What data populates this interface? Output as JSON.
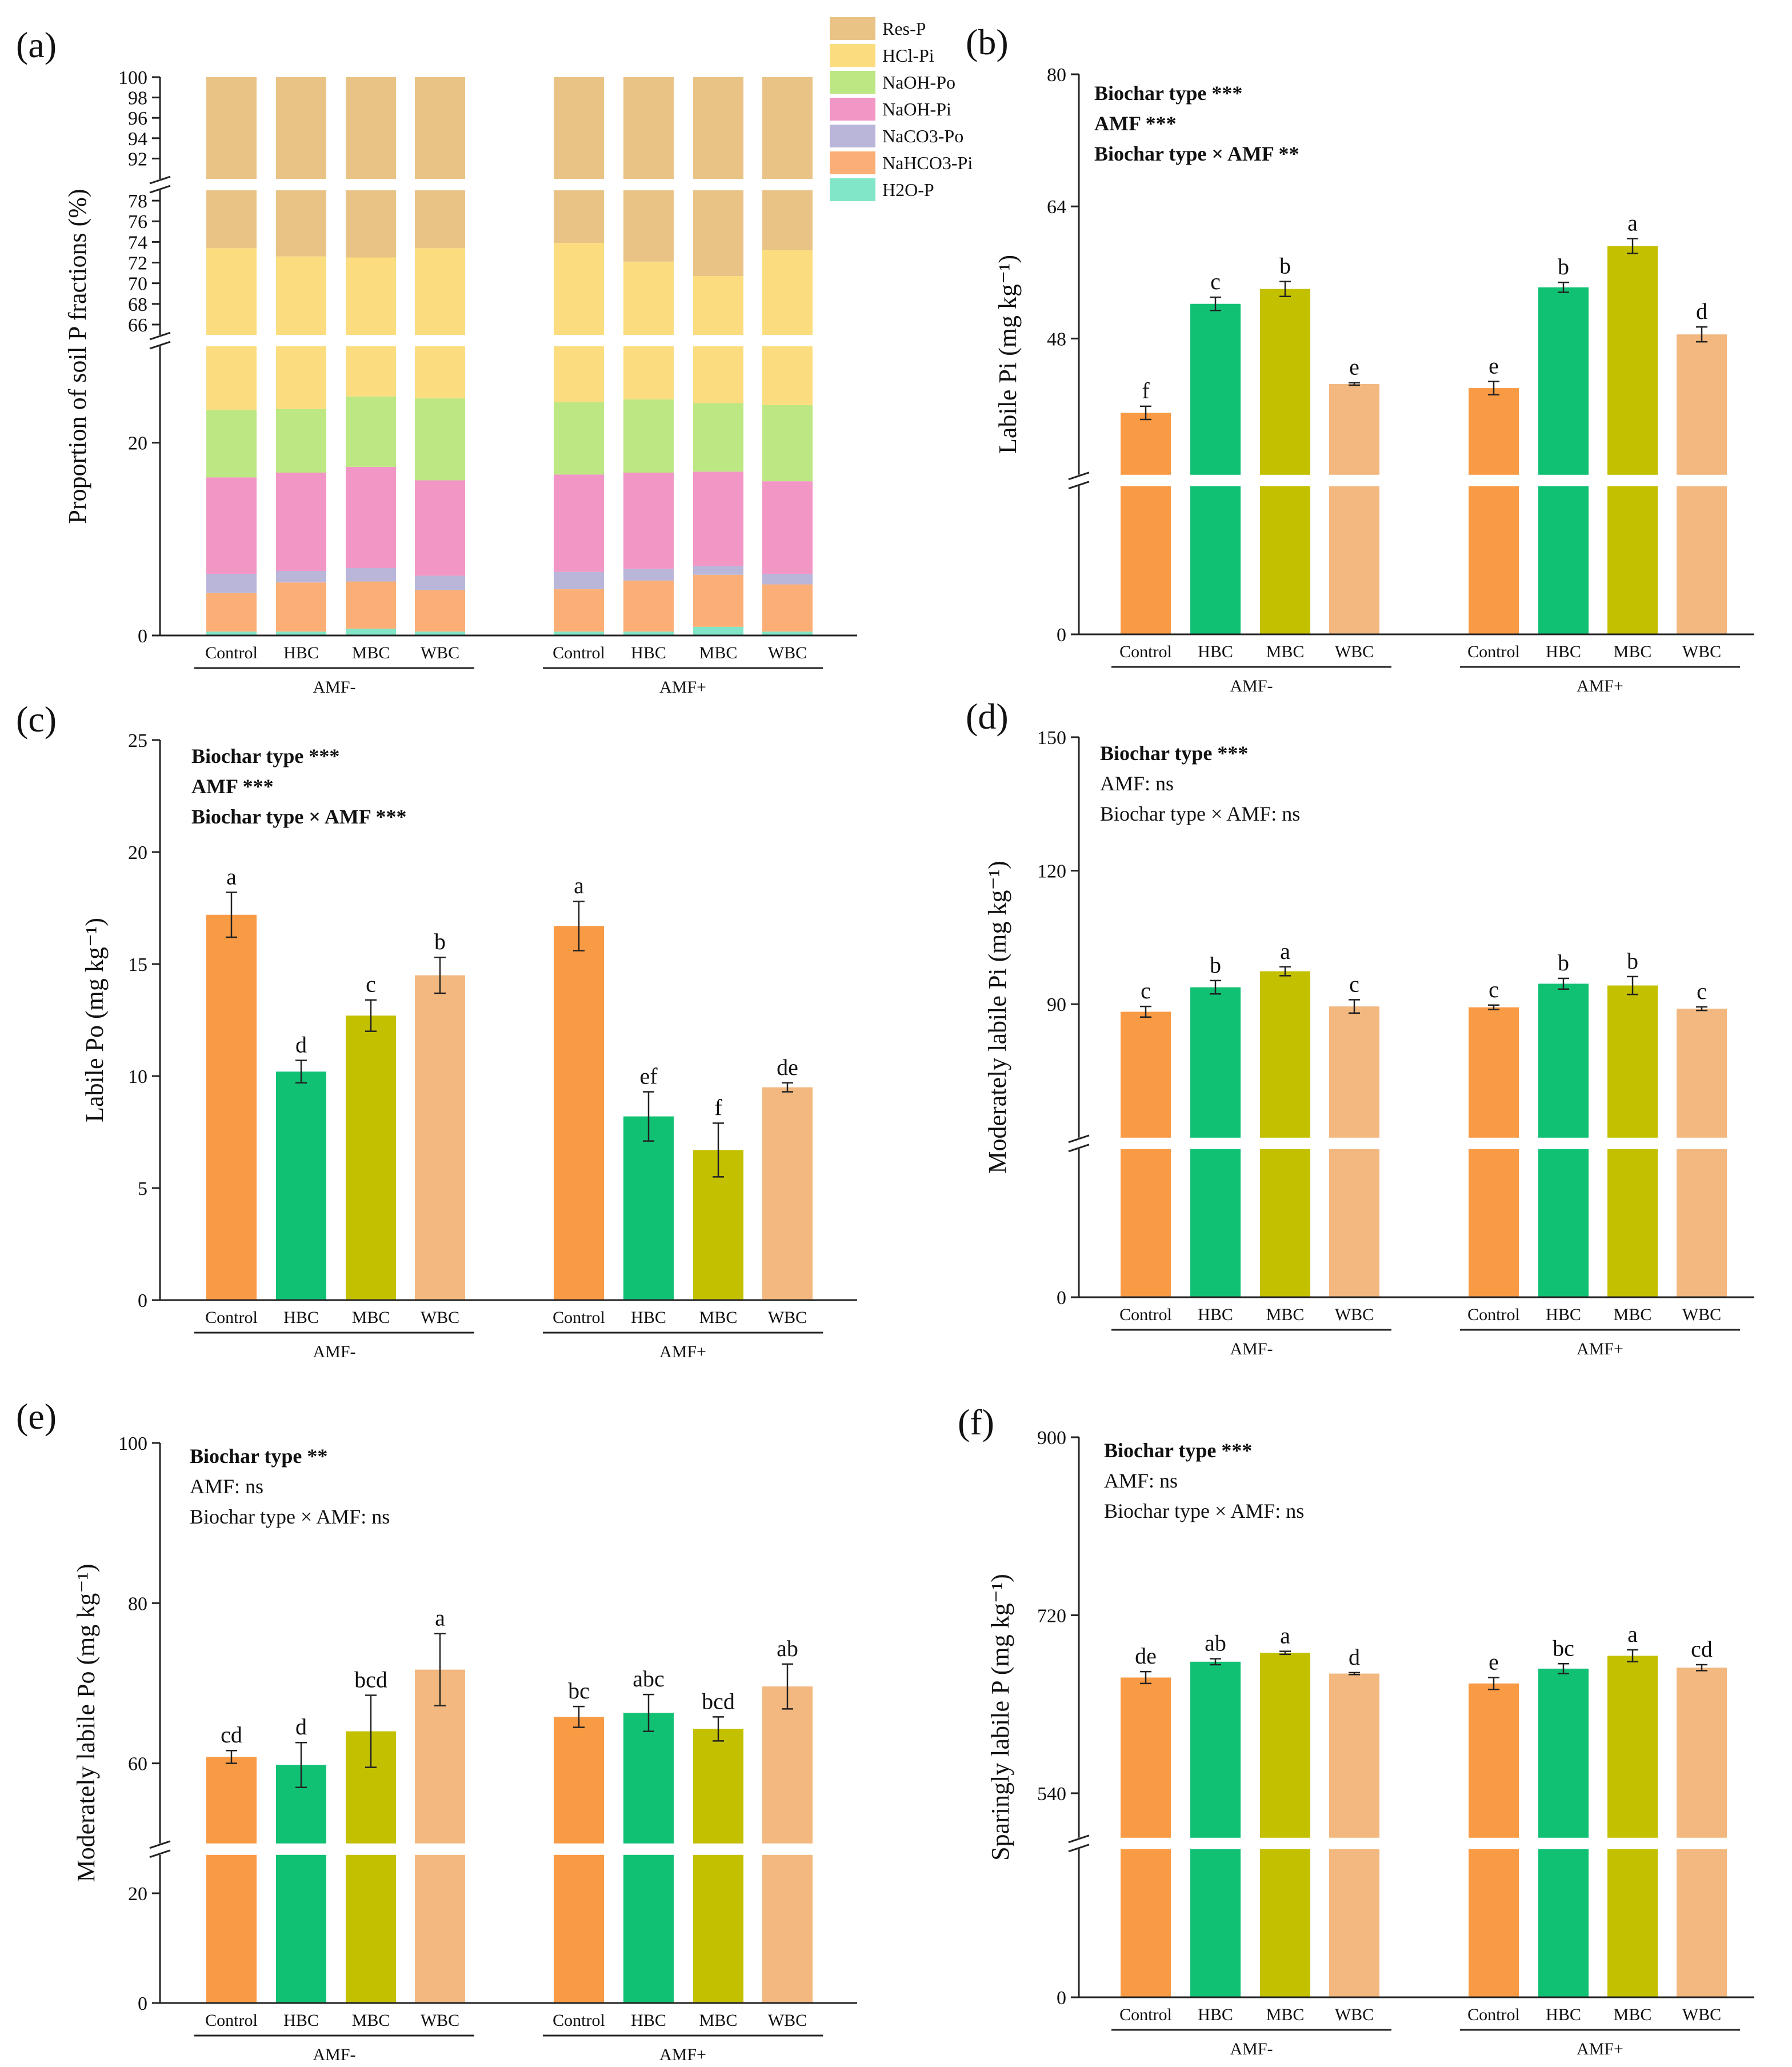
{
  "figure": {
    "colors": {
      "Control": "#F99A45",
      "HBC": "#10C174",
      "MBC": "#C3C000",
      "WBC": "#F2B880"
    },
    "fraction_colors": {
      "Res-P": "#E8C385",
      "HCl-Pi": "#FBDD80",
      "NaOH-Po": "#BCE782",
      "NaOH-Pi": "#F296C6",
      "NaCO3-Po": "#B9B6DA",
      "NaHCO3-Pi": "#FBAF76",
      "H2O-P": "#81E6C7"
    }
  },
  "chart_data": [
    {
      "panel": "(a)",
      "type": "stacked-bar",
      "ylabel": "Proportion of soil P fractions (%)",
      "groups": [
        "AMF-",
        "AMF+"
      ],
      "categories": [
        "Control",
        "HBC",
        "MBC",
        "WBC"
      ],
      "y_segments": [
        {
          "range": [
            0,
            30
          ],
          "ticks": [
            0,
            20
          ]
        },
        {
          "range": [
            65,
            79
          ],
          "ticks": [
            66,
            68,
            70,
            72,
            74,
            76,
            78
          ]
        },
        {
          "range": [
            90,
            100
          ],
          "ticks": [
            92,
            94,
            96,
            98,
            100
          ]
        }
      ],
      "legend": [
        "Res-P",
        "HCl-Pi",
        "NaOH-Po",
        "NaOH-Pi",
        "NaCO3-Po",
        "NaHCO3-Pi",
        "H2O-P"
      ],
      "bars": [
        {
          "group": "AMF-",
          "category": "Control",
          "fractions": {
            "H2O-P": 0.4,
            "NaHCO3-Pi": 4.0,
            "NaCO3-Po": 2.0,
            "NaOH-Pi": 10.0,
            "NaOH-Po": 7.0,
            "HCl-Pi": 50.0,
            "Res-P": 26.6
          }
        },
        {
          "group": "AMF-",
          "category": "HBC",
          "fractions": {
            "H2O-P": 0.4,
            "NaHCO3-Pi": 5.1,
            "NaCO3-Po": 1.2,
            "NaOH-Pi": 10.2,
            "NaOH-Po": 6.6,
            "HCl-Pi": 49.1,
            "Res-P": 27.4
          }
        },
        {
          "group": "AMF-",
          "category": "MBC",
          "fractions": {
            "H2O-P": 0.7,
            "NaHCO3-Pi": 4.9,
            "NaCO3-Po": 1.4,
            "NaOH-Pi": 10.5,
            "NaOH-Po": 7.3,
            "HCl-Pi": 47.7,
            "Res-P": 27.5
          }
        },
        {
          "group": "AMF-",
          "category": "WBC",
          "fractions": {
            "H2O-P": 0.4,
            "NaHCO3-Pi": 4.3,
            "NaCO3-Po": 1.5,
            "NaOH-Pi": 9.9,
            "NaOH-Po": 8.5,
            "HCl-Pi": 48.8,
            "Res-P": 26.6
          }
        },
        {
          "group": "AMF+",
          "category": "Control",
          "fractions": {
            "H2O-P": 0.4,
            "NaHCO3-Pi": 4.4,
            "NaCO3-Po": 1.8,
            "NaOH-Pi": 10.1,
            "NaOH-Po": 7.5,
            "HCl-Pi": 49.7,
            "Res-P": 26.1
          }
        },
        {
          "group": "AMF+",
          "category": "HBC",
          "fractions": {
            "H2O-P": 0.4,
            "NaHCO3-Pi": 5.3,
            "NaCO3-Po": 1.2,
            "NaOH-Pi": 10.0,
            "NaOH-Po": 7.6,
            "HCl-Pi": 47.6,
            "Res-P": 27.9
          }
        },
        {
          "group": "AMF+",
          "category": "MBC",
          "fractions": {
            "H2O-P": 0.9,
            "NaHCO3-Pi": 5.4,
            "NaCO3-Po": 0.9,
            "NaOH-Pi": 9.8,
            "NaOH-Po": 7.1,
            "HCl-Pi": 46.6,
            "Res-P": 29.3
          }
        },
        {
          "group": "AMF+",
          "category": "WBC",
          "fractions": {
            "H2O-P": 0.4,
            "NaHCO3-Pi": 4.9,
            "NaCO3-Po": 1.1,
            "NaOH-Pi": 9.6,
            "NaOH-Po": 7.9,
            "HCl-Pi": 49.3,
            "Res-P": 26.8
          }
        }
      ]
    },
    {
      "panel": "(b)",
      "type": "bar",
      "ylabel": "Labile Pi (mg kg⁻¹)",
      "groups": [
        "AMF-",
        "AMF+"
      ],
      "categories": [
        "Control",
        "HBC",
        "MBC",
        "WBC"
      ],
      "y_segments": [
        {
          "range": [
            0,
            16
          ],
          "ticks": [
            0
          ]
        },
        {
          "range": [
            31.5,
            80
          ],
          "ticks": [
            48,
            64,
            80
          ]
        }
      ],
      "stats": [
        "Biochar type ***",
        "AMF ***",
        "Biochar type × AMF **"
      ],
      "stats_bold": [
        true,
        true,
        true
      ],
      "bars": [
        {
          "group": "AMF-",
          "category": "Control",
          "value": 39.0,
          "error": 0.8,
          "letter": "f"
        },
        {
          "group": "AMF-",
          "category": "HBC",
          "value": 52.2,
          "error": 0.8,
          "letter": "c"
        },
        {
          "group": "AMF-",
          "category": "MBC",
          "value": 54.0,
          "error": 0.9,
          "letter": "b"
        },
        {
          "group": "AMF-",
          "category": "WBC",
          "value": 42.5,
          "error": 0.15,
          "letter": "e"
        },
        {
          "group": "AMF+",
          "category": "Control",
          "value": 42.0,
          "error": 0.8,
          "letter": "e"
        },
        {
          "group": "AMF+",
          "category": "HBC",
          "value": 54.2,
          "error": 0.6,
          "letter": "b"
        },
        {
          "group": "AMF+",
          "category": "MBC",
          "value": 59.2,
          "error": 0.9,
          "letter": "a"
        },
        {
          "group": "AMF+",
          "category": "WBC",
          "value": 48.5,
          "error": 0.9,
          "letter": "d"
        }
      ]
    },
    {
      "panel": "(c)",
      "type": "bar",
      "ylabel": "Labile Po (mg kg⁻¹)",
      "groups": [
        "AMF-",
        "AMF+"
      ],
      "categories": [
        "Control",
        "HBC",
        "MBC",
        "WBC"
      ],
      "y_segments": [
        {
          "range": [
            0,
            25
          ],
          "ticks": [
            0,
            5,
            10,
            15,
            20,
            25
          ]
        }
      ],
      "stats": [
        "Biochar type ***",
        "AMF ***",
        "Biochar type × AMF ***"
      ],
      "stats_bold": [
        true,
        true,
        true
      ],
      "bars": [
        {
          "group": "AMF-",
          "category": "Control",
          "value": 17.2,
          "error": 1.0,
          "letter": "a"
        },
        {
          "group": "AMF-",
          "category": "HBC",
          "value": 10.2,
          "error": 0.5,
          "letter": "d"
        },
        {
          "group": "AMF-",
          "category": "MBC",
          "value": 12.7,
          "error": 0.7,
          "letter": "c"
        },
        {
          "group": "AMF-",
          "category": "WBC",
          "value": 14.5,
          "error": 0.8,
          "letter": "b"
        },
        {
          "group": "AMF+",
          "category": "Control",
          "value": 16.7,
          "error": 1.1,
          "letter": "a"
        },
        {
          "group": "AMF+",
          "category": "HBC",
          "value": 8.2,
          "error": 1.1,
          "letter": "ef"
        },
        {
          "group": "AMF+",
          "category": "MBC",
          "value": 6.7,
          "error": 1.2,
          "letter": "f"
        },
        {
          "group": "AMF+",
          "category": "WBC",
          "value": 9.5,
          "error": 0.2,
          "letter": "de"
        }
      ]
    },
    {
      "panel": "(d)",
      "type": "bar",
      "ylabel": "Moderately labile Pi (mg kg⁻¹)",
      "groups": [
        "AMF-",
        "AMF+"
      ],
      "categories": [
        "Control",
        "HBC",
        "MBC",
        "WBC"
      ],
      "y_segments": [
        {
          "range": [
            0,
            30
          ],
          "ticks": [
            0
          ]
        },
        {
          "range": [
            60,
            150
          ],
          "ticks": [
            90,
            120,
            150
          ]
        }
      ],
      "stats": [
        "Biochar type ***",
        "AMF: ns",
        "Biochar type × AMF: ns"
      ],
      "stats_bold": [
        true,
        false,
        false
      ],
      "bars": [
        {
          "group": "AMF-",
          "category": "Control",
          "value": 88.3,
          "error": 1.2,
          "letter": "c"
        },
        {
          "group": "AMF-",
          "category": "HBC",
          "value": 93.8,
          "error": 1.5,
          "letter": "b"
        },
        {
          "group": "AMF-",
          "category": "MBC",
          "value": 97.4,
          "error": 1.0,
          "letter": "a"
        },
        {
          "group": "AMF-",
          "category": "WBC",
          "value": 89.5,
          "error": 1.5,
          "letter": "c"
        },
        {
          "group": "AMF+",
          "category": "Control",
          "value": 89.3,
          "error": 0.5,
          "letter": "c"
        },
        {
          "group": "AMF+",
          "category": "HBC",
          "value": 94.6,
          "error": 1.2,
          "letter": "b"
        },
        {
          "group": "AMF+",
          "category": "MBC",
          "value": 94.2,
          "error": 2.0,
          "letter": "b"
        },
        {
          "group": "AMF+",
          "category": "WBC",
          "value": 89.0,
          "error": 0.4,
          "letter": "c"
        }
      ]
    },
    {
      "panel": "(e)",
      "type": "bar",
      "ylabel": "Moderately labile Po (mg kg⁻¹)",
      "groups": [
        "AMF-",
        "AMF+"
      ],
      "categories": [
        "Control",
        "HBC",
        "MBC",
        "WBC"
      ],
      "y_segments": [
        {
          "range": [
            0,
            27
          ],
          "ticks": [
            0,
            20
          ]
        },
        {
          "range": [
            50,
            100
          ],
          "ticks": [
            60,
            80,
            100
          ]
        }
      ],
      "stats": [
        "Biochar type **",
        "AMF: ns",
        "Biochar type × AMF: ns"
      ],
      "stats_bold": [
        true,
        false,
        false
      ],
      "bars": [
        {
          "group": "AMF-",
          "category": "Control",
          "value": 60.8,
          "error": 0.8,
          "letter": "cd"
        },
        {
          "group": "AMF-",
          "category": "HBC",
          "value": 59.8,
          "error": 2.8,
          "letter": "d"
        },
        {
          "group": "AMF-",
          "category": "MBC",
          "value": 64.0,
          "error": 4.5,
          "letter": "bcd"
        },
        {
          "group": "AMF-",
          "category": "WBC",
          "value": 71.7,
          "error": 4.5,
          "letter": "a"
        },
        {
          "group": "AMF+",
          "category": "Control",
          "value": 65.8,
          "error": 1.3,
          "letter": "bc"
        },
        {
          "group": "AMF+",
          "category": "HBC",
          "value": 66.3,
          "error": 2.3,
          "letter": "abc"
        },
        {
          "group": "AMF+",
          "category": "MBC",
          "value": 64.3,
          "error": 1.5,
          "letter": "bcd"
        },
        {
          "group": "AMF+",
          "category": "WBC",
          "value": 69.6,
          "error": 2.8,
          "letter": "ab"
        }
      ]
    },
    {
      "panel": "(f)",
      "type": "bar",
      "ylabel": "Sparingly labile P (mg kg⁻¹)",
      "groups": [
        "AMF-",
        "AMF+"
      ],
      "categories": [
        "Control",
        "HBC",
        "MBC",
        "WBC"
      ],
      "y_segments": [
        {
          "range": [
            0,
            200
          ],
          "ticks": [
            0
          ]
        },
        {
          "range": [
            495,
            900
          ],
          "ticks": [
            540,
            720,
            900
          ]
        }
      ],
      "stats": [
        "Biochar type ***",
        "AMF: ns",
        "Biochar type × AMF: ns"
      ],
      "stats_bold": [
        true,
        false,
        false
      ],
      "bars": [
        {
          "group": "AMF-",
          "category": "Control",
          "value": 657,
          "error": 6,
          "letter": "de"
        },
        {
          "group": "AMF-",
          "category": "HBC",
          "value": 673,
          "error": 3,
          "letter": "ab"
        },
        {
          "group": "AMF-",
          "category": "MBC",
          "value": 682,
          "error": 1.5,
          "letter": "a"
        },
        {
          "group": "AMF-",
          "category": "WBC",
          "value": 661,
          "error": 1,
          "letter": "d"
        },
        {
          "group": "AMF+",
          "category": "Control",
          "value": 651,
          "error": 6,
          "letter": "e"
        },
        {
          "group": "AMF+",
          "category": "HBC",
          "value": 666,
          "error": 5,
          "letter": "bc"
        },
        {
          "group": "AMF+",
          "category": "MBC",
          "value": 679,
          "error": 6,
          "letter": "a"
        },
        {
          "group": "AMF+",
          "category": "WBC",
          "value": 667,
          "error": 3,
          "letter": "cd"
        }
      ]
    }
  ]
}
